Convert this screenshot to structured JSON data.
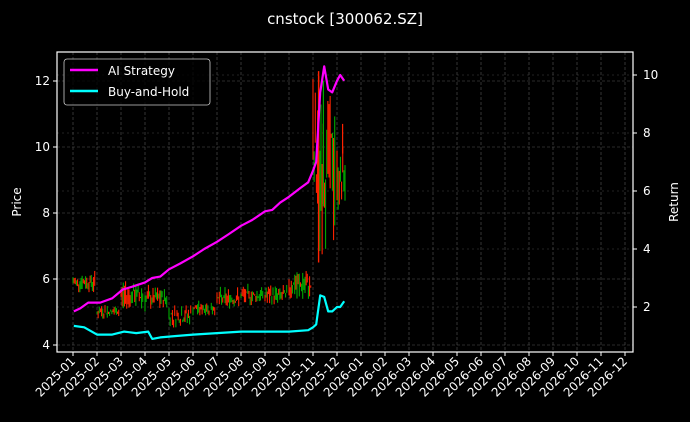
{
  "chart_data": {
    "type": "line",
    "title": "cnstock [300062.SZ]",
    "background": "#000000",
    "grid": true,
    "legend_position": "upper left",
    "x": {
      "label": "",
      "ticks": [
        "2025-01",
        "2025-02",
        "2025-03",
        "2025-04",
        "2025-05",
        "2025-06",
        "2025-07",
        "2025-08",
        "2025-09",
        "2025-10",
        "2025-11",
        "2025-12",
        "2026-01",
        "2026-02",
        "2026-03",
        "2026-04",
        "2026-05",
        "2026-06",
        "2026-07",
        "2026-08",
        "2026-09",
        "2026-10",
        "2026-11",
        "2026-12"
      ],
      "tick_rotation": 45
    },
    "y_left": {
      "label": "Price",
      "ticks": [
        4,
        6,
        8,
        10,
        12
      ],
      "ylim": [
        3.8,
        12.9
      ]
    },
    "y_right": {
      "label": "Return",
      "ticks": [
        2,
        4,
        6,
        8,
        10
      ],
      "ylim": [
        0.6,
        10.8
      ]
    },
    "legend": [
      {
        "name": "AI Strategy",
        "color": "#ff00ff"
      },
      {
        "name": "Buy-and-Hold",
        "color": "#00ffff"
      }
    ],
    "series": [
      {
        "name": "AI Strategy",
        "axis": "right",
        "color": "#ff00ff",
        "dates": [
          "2025-01-02",
          "2025-01-10",
          "2025-01-20",
          "2025-02-05",
          "2025-02-20",
          "2025-03-03",
          "2025-03-15",
          "2025-04-01",
          "2025-04-10",
          "2025-04-20",
          "2025-05-01",
          "2025-05-15",
          "2025-06-01",
          "2025-06-15",
          "2025-07-01",
          "2025-07-15",
          "2025-08-01",
          "2025-08-15",
          "2025-09-01",
          "2025-09-10",
          "2025-09-20",
          "2025-10-01",
          "2025-10-15",
          "2025-10-25",
          "2025-11-01",
          "2025-11-05",
          "2025-11-10",
          "2025-11-15",
          "2025-11-20",
          "2025-11-25",
          "2025-12-01",
          "2025-12-05",
          "2025-12-10"
        ],
        "values": [
          1.85,
          1.95,
          2.15,
          2.15,
          2.3,
          2.6,
          2.7,
          2.85,
          3.0,
          3.05,
          3.3,
          3.5,
          3.75,
          4.0,
          4.25,
          4.5,
          4.8,
          5.0,
          5.3,
          5.35,
          5.6,
          5.8,
          6.1,
          6.3,
          6.7,
          7.0,
          9.4,
          10.3,
          9.5,
          9.4,
          9.8,
          10.0,
          9.8
        ]
      },
      {
        "name": "Buy-and-Hold",
        "axis": "right",
        "color": "#00ffff",
        "dates": [
          "2025-01-02",
          "2025-01-15",
          "2025-02-01",
          "2025-02-20",
          "2025-03-05",
          "2025-03-20",
          "2025-04-05",
          "2025-04-10",
          "2025-04-20",
          "2025-05-10",
          "2025-06-01",
          "2025-07-01",
          "2025-08-01",
          "2025-09-01",
          "2025-10-01",
          "2025-10-25",
          "2025-11-01",
          "2025-11-05",
          "2025-11-10",
          "2025-11-15",
          "2025-11-20",
          "2025-11-25",
          "2025-12-01",
          "2025-12-05",
          "2025-12-10"
        ],
        "values": [
          1.35,
          1.3,
          1.05,
          1.05,
          1.15,
          1.1,
          1.15,
          0.9,
          0.95,
          1.0,
          1.05,
          1.1,
          1.15,
          1.15,
          1.15,
          1.2,
          1.3,
          1.4,
          2.4,
          2.35,
          1.85,
          1.85,
          2.0,
          2.0,
          2.2
        ]
      },
      {
        "name": "Price (candles)",
        "axis": "left",
        "type": "candlestick",
        "up_color": "#ff2200",
        "down_color": "#00aa00",
        "dates": [
          "2025-01",
          "2025-02",
          "2025-03",
          "2025-04",
          "2025-05",
          "2025-06",
          "2025-07",
          "2025-08",
          "2025-09",
          "2025-10",
          "2025-11",
          "2025-12"
        ],
        "approx_close": [
          5.9,
          5.0,
          5.5,
          5.4,
          4.9,
          5.1,
          5.4,
          5.5,
          5.5,
          5.8,
          9.5,
          9.0
        ],
        "approx_high": [
          6.4,
          5.4,
          6.3,
          5.9,
          5.2,
          5.5,
          5.9,
          5.9,
          6.0,
          6.6,
          12.3,
          10.7
        ],
        "approx_low": [
          5.6,
          4.8,
          5.1,
          5.0,
          4.4,
          4.9,
          5.1,
          5.2,
          5.2,
          5.4,
          6.5,
          8.1
        ]
      }
    ]
  }
}
